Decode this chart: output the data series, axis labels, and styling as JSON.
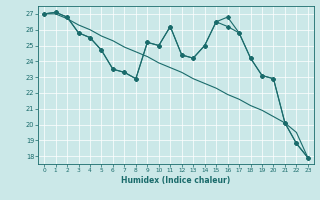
{
  "xlabel": "Humidex (Indice chaleur)",
  "ylabel": "",
  "xlim": [
    -0.5,
    23.5
  ],
  "ylim": [
    17.5,
    27.5
  ],
  "xticks": [
    0,
    1,
    2,
    3,
    4,
    5,
    6,
    7,
    8,
    9,
    10,
    11,
    12,
    13,
    14,
    15,
    16,
    17,
    18,
    19,
    20,
    21,
    22,
    23
  ],
  "yticks": [
    18,
    19,
    20,
    21,
    22,
    23,
    24,
    25,
    26,
    27
  ],
  "background_color": "#cbe8e8",
  "line_color": "#1a6b6b",
  "grid_color": "#ffffff",
  "line1": [
    27.0,
    27.1,
    26.8,
    25.8,
    25.5,
    24.7,
    23.5,
    23.3,
    22.9,
    25.2,
    25.0,
    26.2,
    24.4,
    24.2,
    25.0,
    26.5,
    26.2,
    25.8,
    24.2,
    23.1,
    22.9,
    20.1,
    18.8,
    17.9
  ],
  "line2": [
    27.0,
    27.1,
    26.8,
    25.8,
    25.5,
    24.7,
    23.5,
    23.3,
    22.9,
    25.2,
    25.0,
    26.2,
    24.4,
    24.2,
    25.0,
    26.5,
    26.8,
    25.8,
    24.2,
    23.1,
    22.9,
    20.1,
    18.8,
    17.9
  ],
  "line3": [
    27.0,
    27.0,
    26.7,
    26.3,
    26.0,
    25.6,
    25.3,
    24.9,
    24.6,
    24.3,
    23.9,
    23.6,
    23.3,
    22.9,
    22.6,
    22.3,
    21.9,
    21.6,
    21.2,
    20.9,
    20.5,
    20.1,
    19.5,
    17.9
  ]
}
